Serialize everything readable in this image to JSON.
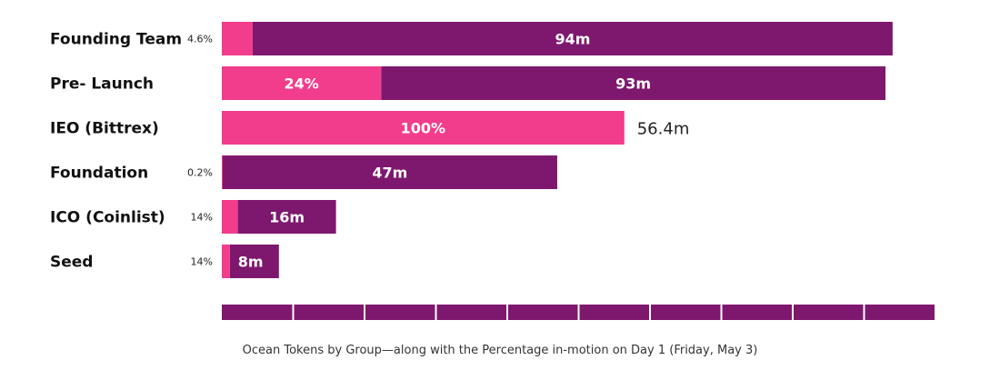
{
  "colors": {
    "in_motion": "#f23c8c",
    "locked": "#7e186e",
    "axis": "#7e186e",
    "text": "#111111"
  },
  "caption": "Ocean Tokens by Group—along with the Percentage in-motion on Day 1 (Friday, May 3)",
  "chart_data": {
    "type": "bar",
    "orientation": "horizontal",
    "stacked": true,
    "unit": "m",
    "categories": [
      "Founding Team",
      "Pre- Launch",
      "IEO (Bittrex)",
      "Foundation",
      "ICO (Coinlist)",
      "Seed"
    ],
    "totals": [
      94,
      93,
      56.4,
      47,
      16,
      8
    ],
    "in_motion_pct": [
      4.6,
      24,
      100,
      0.2,
      14,
      14
    ],
    "in_motion_labels": [
      "4.6%",
      "24%",
      "100%",
      "0.2%",
      "14%",
      "14%"
    ],
    "total_labels": [
      "94m",
      "93m",
      "56.4m",
      "47m",
      "16m",
      "8m"
    ],
    "xlim": [
      0,
      100
    ],
    "x_ticks": 10,
    "grid": false,
    "legend": "none"
  }
}
